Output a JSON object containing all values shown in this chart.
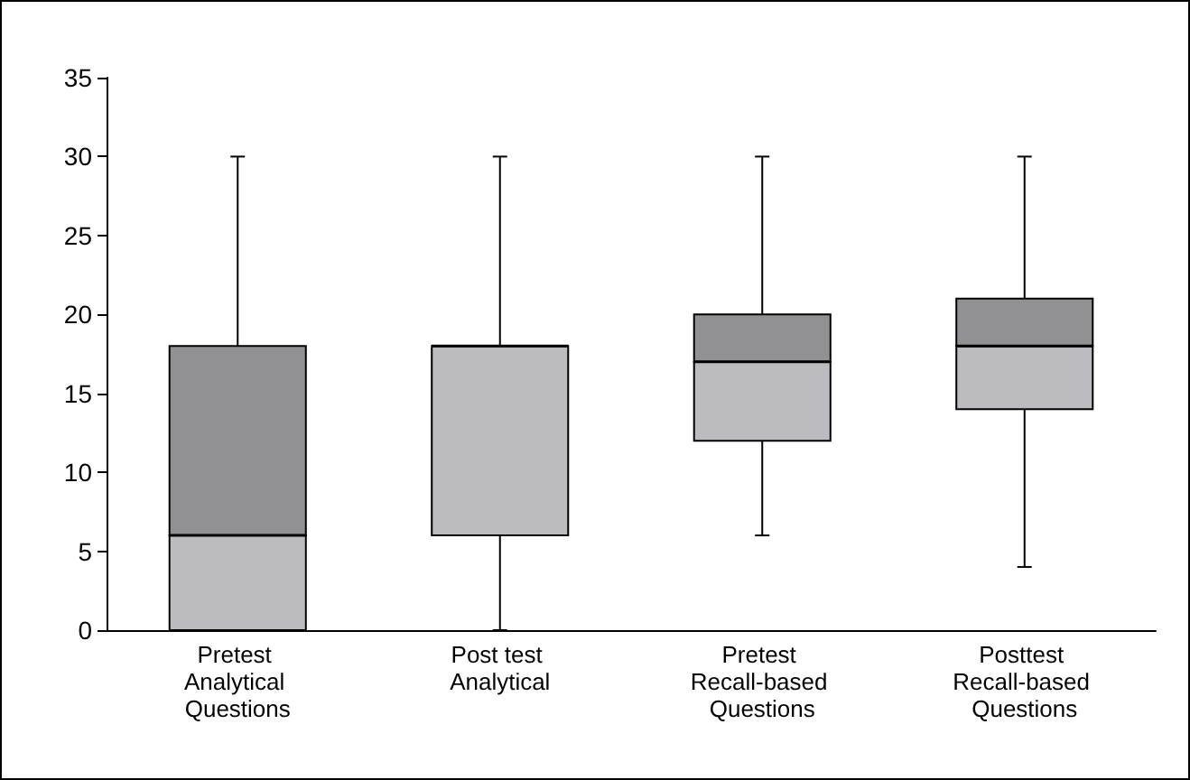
{
  "chart_data": {
    "type": "box",
    "categories": [
      "Pretest Analytical Questions",
      "Post test Analytical",
      "Pretest Recall-based Questions",
      "Posttest Recall-based Questions"
    ],
    "series": [
      {
        "color": "#bcbcc0",
        "boxes": [
          {
            "low": 0,
            "q1": 0,
            "median": 6,
            "q3": 18,
            "high": 30
          },
          {
            "low": 0,
            "q1": 6,
            "median": 18,
            "q3": 18,
            "high": 30
          },
          {
            "low": 6,
            "q1": 12,
            "median": 17,
            "q3": 20,
            "high": 30
          },
          {
            "low": 4,
            "q1": 14,
            "median": 18,
            "q3": 21,
            "high": 30
          }
        ]
      }
    ],
    "ylim": [
      0,
      35
    ],
    "yticks": [
      0,
      5,
      10,
      15,
      20,
      25,
      30,
      35
    ],
    "grid": false
  }
}
